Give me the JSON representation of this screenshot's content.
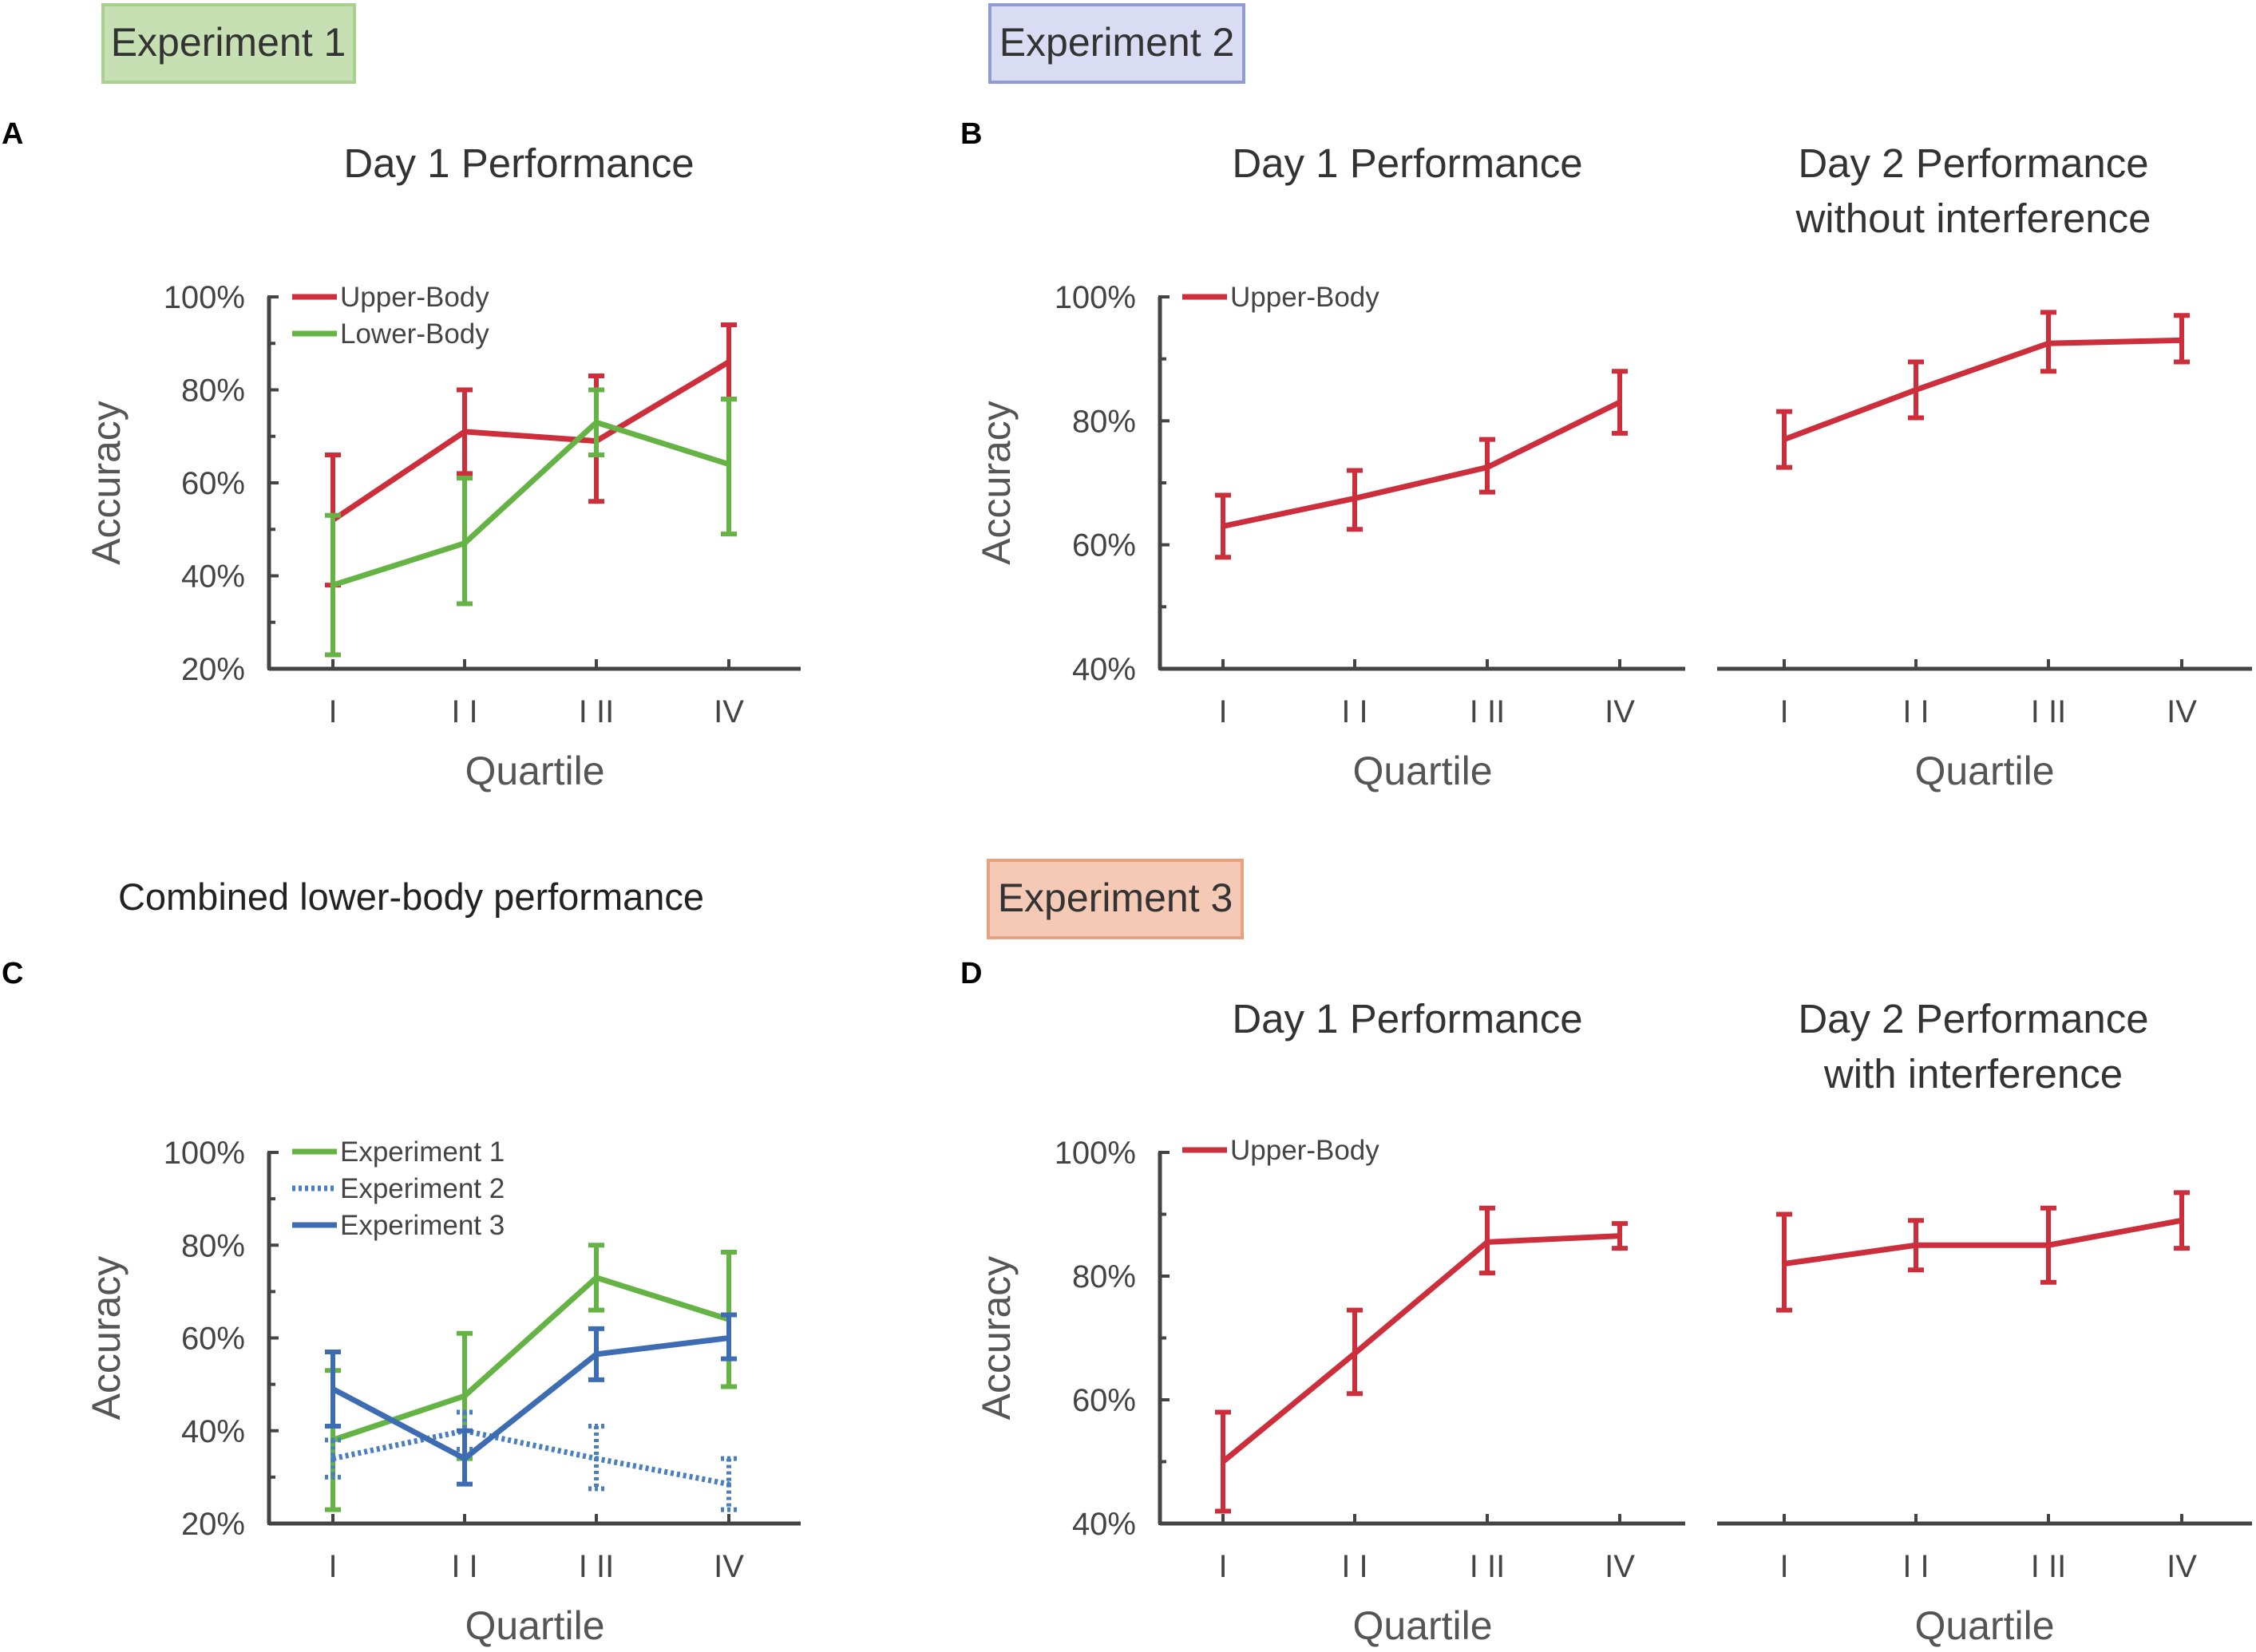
{
  "header": {
    "badges": [
      {
        "key": "exp1",
        "label": "Experiment 1",
        "fill": "#c6e0b4",
        "stroke": "#a9d18e"
      },
      {
        "key": "exp2",
        "label": "Experiment 2",
        "fill": "#d9dcf2",
        "stroke": "#8f9bd4"
      },
      {
        "key": "exp3",
        "label": "Experiment 3",
        "fill": "#f4c9b5",
        "stroke": "#e9a27f"
      }
    ],
    "section_c_title": "Combined lower-body performance"
  },
  "panel_letters": [
    "A",
    "B",
    "C",
    "D"
  ],
  "colors": {
    "upper_body": "#cc2f3b",
    "lower_body": "#66b345",
    "experiment_1": "#66b345",
    "experiment_2": "#4a7fbf",
    "experiment_3": "#3d6cb2",
    "axis": "#444444"
  },
  "chart_data": [
    {
      "id": "A",
      "type": "line",
      "title": "Day 1 Performance",
      "xlabel": "Quartile",
      "ylabel": "Accuracy",
      "categories": [
        "I",
        "I I",
        "I II",
        "IV"
      ],
      "ylim": [
        20,
        100
      ],
      "yticks": [
        "20%",
        "40%",
        "60%",
        "80%",
        "100%"
      ],
      "legend": "top-left",
      "series": [
        {
          "name": "Upper-Body",
          "color": "#cc2f3b",
          "style": "solid",
          "values": [
            52,
            71,
            69,
            86
          ],
          "lower": [
            38,
            62,
            56,
            78
          ],
          "upper": [
            66,
            80,
            83,
            94
          ]
        },
        {
          "name": "Lower-Body",
          "color": "#66b345",
          "style": "solid",
          "values": [
            38,
            47,
            73,
            64
          ],
          "lower": [
            23,
            34,
            66,
            49
          ],
          "upper": [
            53,
            61,
            80,
            78
          ]
        }
      ]
    },
    {
      "id": "B1",
      "type": "line",
      "title": "Day 1 Performance",
      "xlabel": "Quartile",
      "ylabel": "Accuracy",
      "categories": [
        "I",
        "I I",
        "I II",
        "IV"
      ],
      "ylim": [
        40,
        100
      ],
      "yticks": [
        "40%",
        "60%",
        "80%",
        "100%"
      ],
      "legend": "top-left",
      "series": [
        {
          "name": "Upper-Body",
          "color": "#cc2f3b",
          "style": "solid",
          "values": [
            63,
            67.5,
            72.5,
            83
          ],
          "lower": [
            58,
            62.5,
            68.5,
            78
          ],
          "upper": [
            68,
            72,
            77,
            88
          ]
        }
      ]
    },
    {
      "id": "B2",
      "type": "line",
      "title": "Day 2 Performance without interference",
      "xlabel": "Quartile",
      "ylabel": "",
      "categories": [
        "I",
        "I I",
        "I II",
        "IV"
      ],
      "ylim": [
        40,
        100
      ],
      "series": [
        {
          "name": "Upper-Body",
          "color": "#cc2f3b",
          "style": "solid",
          "values": [
            77,
            85,
            92.5,
            93
          ],
          "lower": [
            72.5,
            80.5,
            88,
            89.5
          ],
          "upper": [
            81.5,
            89.5,
            97.5,
            97
          ]
        }
      ]
    },
    {
      "id": "C",
      "type": "line",
      "title": "",
      "xlabel": "Quartile",
      "ylabel": "Accuracy",
      "categories": [
        "I",
        "I I",
        "I II",
        "IV"
      ],
      "ylim": [
        20,
        100
      ],
      "yticks": [
        "20%",
        "40%",
        "60%",
        "80%",
        "100%"
      ],
      "legend": "top-left",
      "series": [
        {
          "name": "Experiment 1",
          "color": "#66b345",
          "style": "solid",
          "values": [
            38,
            47.5,
            73,
            64
          ],
          "lower": [
            23,
            34,
            66,
            49.5
          ],
          "upper": [
            53,
            61,
            80,
            78.5
          ]
        },
        {
          "name": "Experiment 2",
          "color": "#4a7fbf",
          "style": "dotted",
          "values": [
            34,
            40,
            34,
            28.5
          ],
          "lower": [
            30,
            36,
            27.5,
            23
          ],
          "upper": [
            38,
            44,
            41,
            34
          ]
        },
        {
          "name": "Experiment 3",
          "color": "#3d6cb2",
          "style": "solid",
          "values": [
            49,
            34,
            56.5,
            60
          ],
          "lower": [
            41,
            28.5,
            51,
            55.5
          ],
          "upper": [
            57,
            40,
            62,
            65
          ]
        }
      ]
    },
    {
      "id": "D1",
      "type": "line",
      "title": "Day 1 Performance",
      "xlabel": "Quartile",
      "ylabel": "Accuracy",
      "categories": [
        "I",
        "I I",
        "I II",
        "IV"
      ],
      "ylim": [
        40,
        100
      ],
      "yticks": [
        "40%",
        "60%",
        "80%",
        "100%"
      ],
      "legend": "top-left",
      "series": [
        {
          "name": "Upper-Body",
          "color": "#cc2f3b",
          "style": "solid",
          "values": [
            50,
            67.5,
            85.5,
            86.5
          ],
          "lower": [
            42,
            61,
            80.5,
            84.5
          ],
          "upper": [
            58,
            74.5,
            91,
            88.5
          ]
        }
      ]
    },
    {
      "id": "D2",
      "type": "line",
      "title": "Day 2 Performance with interference",
      "xlabel": "Quartile",
      "ylabel": "",
      "categories": [
        "I",
        "I I",
        "I II",
        "IV"
      ],
      "ylim": [
        40,
        100
      ],
      "series": [
        {
          "name": "Upper-Body",
          "color": "#cc2f3b",
          "style": "solid",
          "values": [
            82,
            85,
            85,
            89
          ],
          "lower": [
            74.5,
            81,
            79,
            84.5
          ],
          "upper": [
            90,
            89,
            91,
            93.5
          ]
        }
      ]
    }
  ]
}
